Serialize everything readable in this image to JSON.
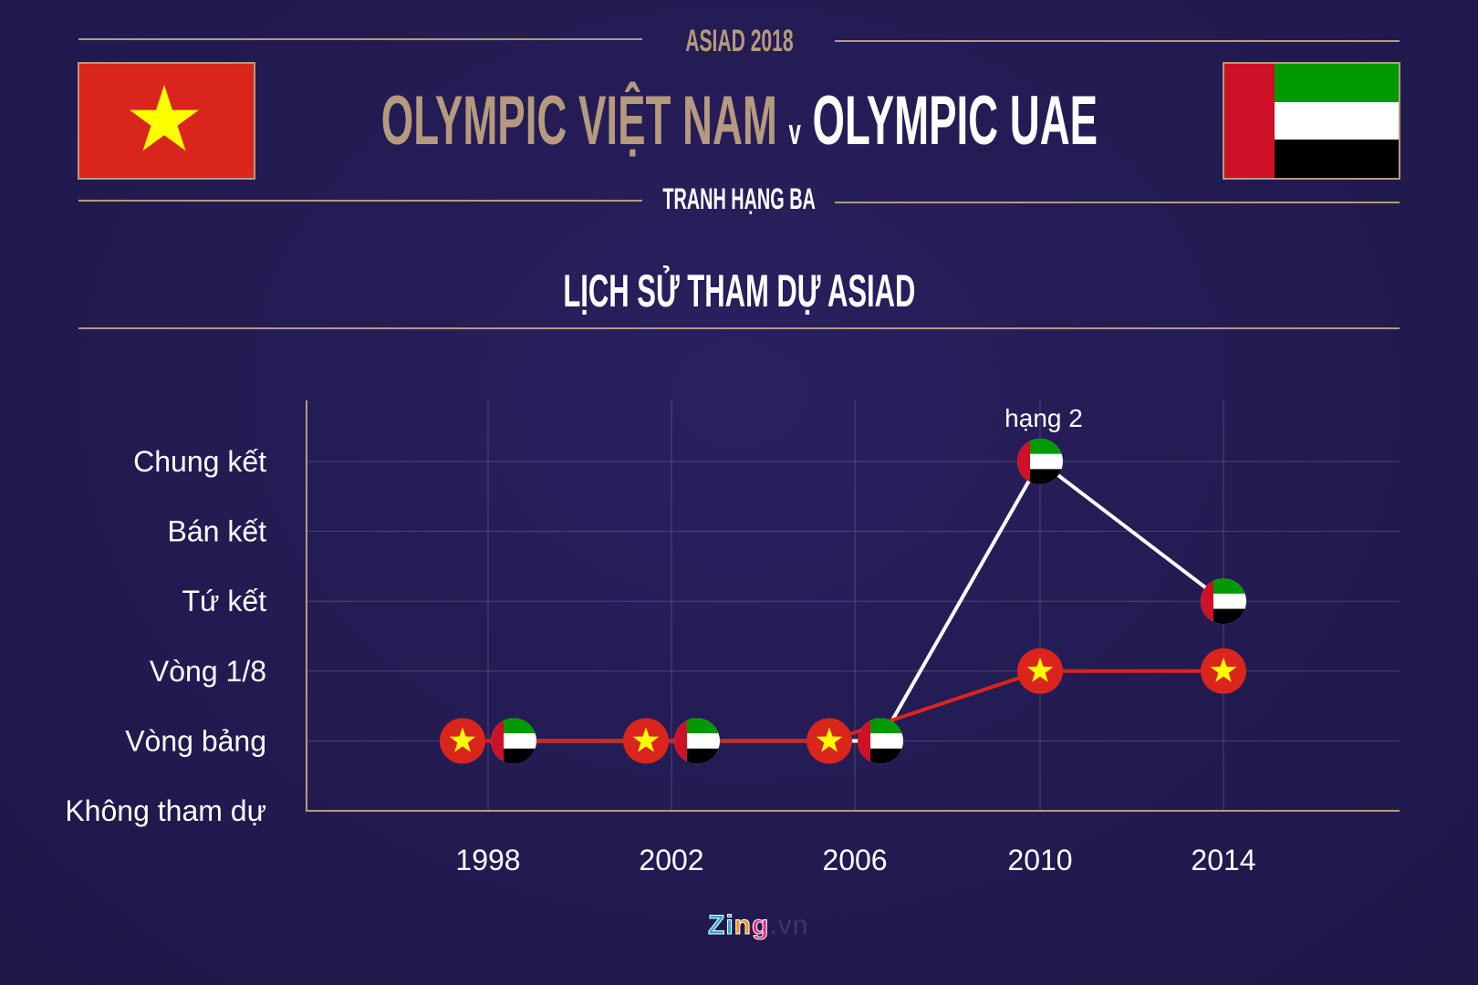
{
  "header": {
    "event": "ASIAD 2018",
    "team_home": "OLYMPIC VIỆT NAM",
    "versus": "v",
    "team_away": "OLYMPIC UAE",
    "match_type": "TRANH HẠNG BA",
    "section_title": "LỊCH SỬ THAM DỰ ASIAD"
  },
  "colors": {
    "gold": "#b59a7e",
    "background": "#241d55",
    "vietnam_line": "#d7261e",
    "uae_line": "#ffffff"
  },
  "chart_data": {
    "type": "line",
    "title": "",
    "categories": [
      "1998",
      "2002",
      "2006",
      "2010",
      "2014"
    ],
    "y_categories": [
      "Không tham dự",
      "Vòng bảng",
      "Vòng 1/8",
      "Tứ kết",
      "Bán kết",
      "Chung kết"
    ],
    "series": [
      {
        "marker": "vietnam-flag",
        "color": "#d7261e",
        "values": [
          "Vòng bảng",
          "Vòng bảng",
          "Vòng bảng",
          "Vòng 1/8",
          "Vòng 1/8"
        ]
      },
      {
        "marker": "uae-flag",
        "color": "#ffffff",
        "values": [
          "Vòng bảng",
          "Vòng bảng",
          "Vòng bảng",
          "Chung kết",
          "Tứ kết"
        ]
      }
    ],
    "annotations": [
      {
        "category": "2010",
        "series": 1,
        "text": "hạng 2"
      }
    ],
    "grid": true
  },
  "footer": {
    "logo": "Zing.vn"
  }
}
